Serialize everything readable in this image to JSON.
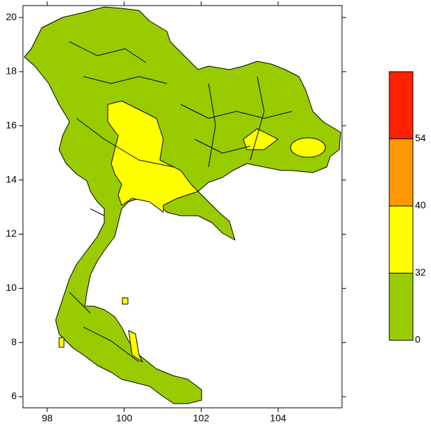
{
  "chart_data": {
    "type": "map",
    "xlim": [
      97.37,
      105.66
    ],
    "ylim": [
      5.59,
      20.44
    ],
    "xticks": [
      98,
      100,
      102,
      104
    ],
    "yticks": [
      6,
      8,
      10,
      12,
      14,
      16,
      18,
      20
    ],
    "colorbar": {
      "levels": [
        0,
        32,
        40,
        54
      ],
      "colors": [
        "#99cc00",
        "#ffff00",
        "#ff9900",
        "#ff2200"
      ]
    }
  }
}
